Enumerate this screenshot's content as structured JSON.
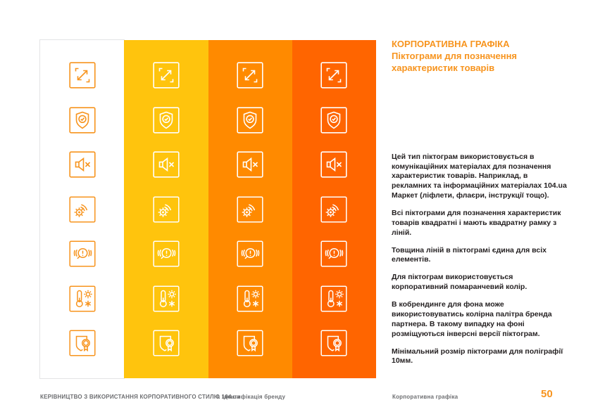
{
  "header": {
    "title": "КОРПОРАТИВНА ГРАФІКА",
    "subtitle": "Піктограми для позначення характеристик товарів"
  },
  "body": {
    "paragraphs": [
      "Цей тип піктограм використовується в комунікаційних матеріалах для позначення характеристик товарів. Наприклад, в рекламних та інформаційних матеріалах 104.ua Маркет (ліфлети, флаєри, інструкції тощо).",
      "Всі піктограми для позначення характеристик товарів квадратні і мають квадратну рамку з ліній.",
      "Товщина ліній в піктограмі єдина для всіх елементів.",
      "Для піктограм використовується корпоративний помаранчевий колір.",
      "В кобрендинге для фона може використовуватись колірна палітра бренда партнера. В такому випадку на фоні розміщуються інверсні версії піктограм.",
      "Мінімальний розмір піктограми для поліграфії 10мм."
    ]
  },
  "palette": {
    "corporate_orange": "#F7941E",
    "columns": [
      {
        "name": "white",
        "bg": "#FFFFFF",
        "icon": "#F7941E",
        "border": "#E3E4E5"
      },
      {
        "name": "yellow",
        "bg": "#FFC40D",
        "icon": "#FFFFFF",
        "border": ""
      },
      {
        "name": "orange",
        "bg": "#FF8A00",
        "icon": "#FFFFFF",
        "border": ""
      },
      {
        "name": "deep-orange",
        "bg": "#FF6500",
        "icon": "#FFFFFF",
        "border": ""
      }
    ]
  },
  "icons": [
    {
      "name": "expand-dimensions-icon"
    },
    {
      "name": "shield-check-icon"
    },
    {
      "name": "speaker-mute-icon"
    },
    {
      "name": "spark-signal-icon"
    },
    {
      "name": "magnifier-alert-icon"
    },
    {
      "name": "temperature-range-icon"
    },
    {
      "name": "certificate-ribbon-icon"
    }
  ],
  "footer": {
    "manual": "КЕРІВНИЦТВО З ВИКОРИСТАННЯ КОРПОРАТИВНОГО СТИЛЮ 104.ua",
    "section": "І. Ідентифікація бренду",
    "chapter": "Корпоративна графіка",
    "page_number": "50"
  }
}
